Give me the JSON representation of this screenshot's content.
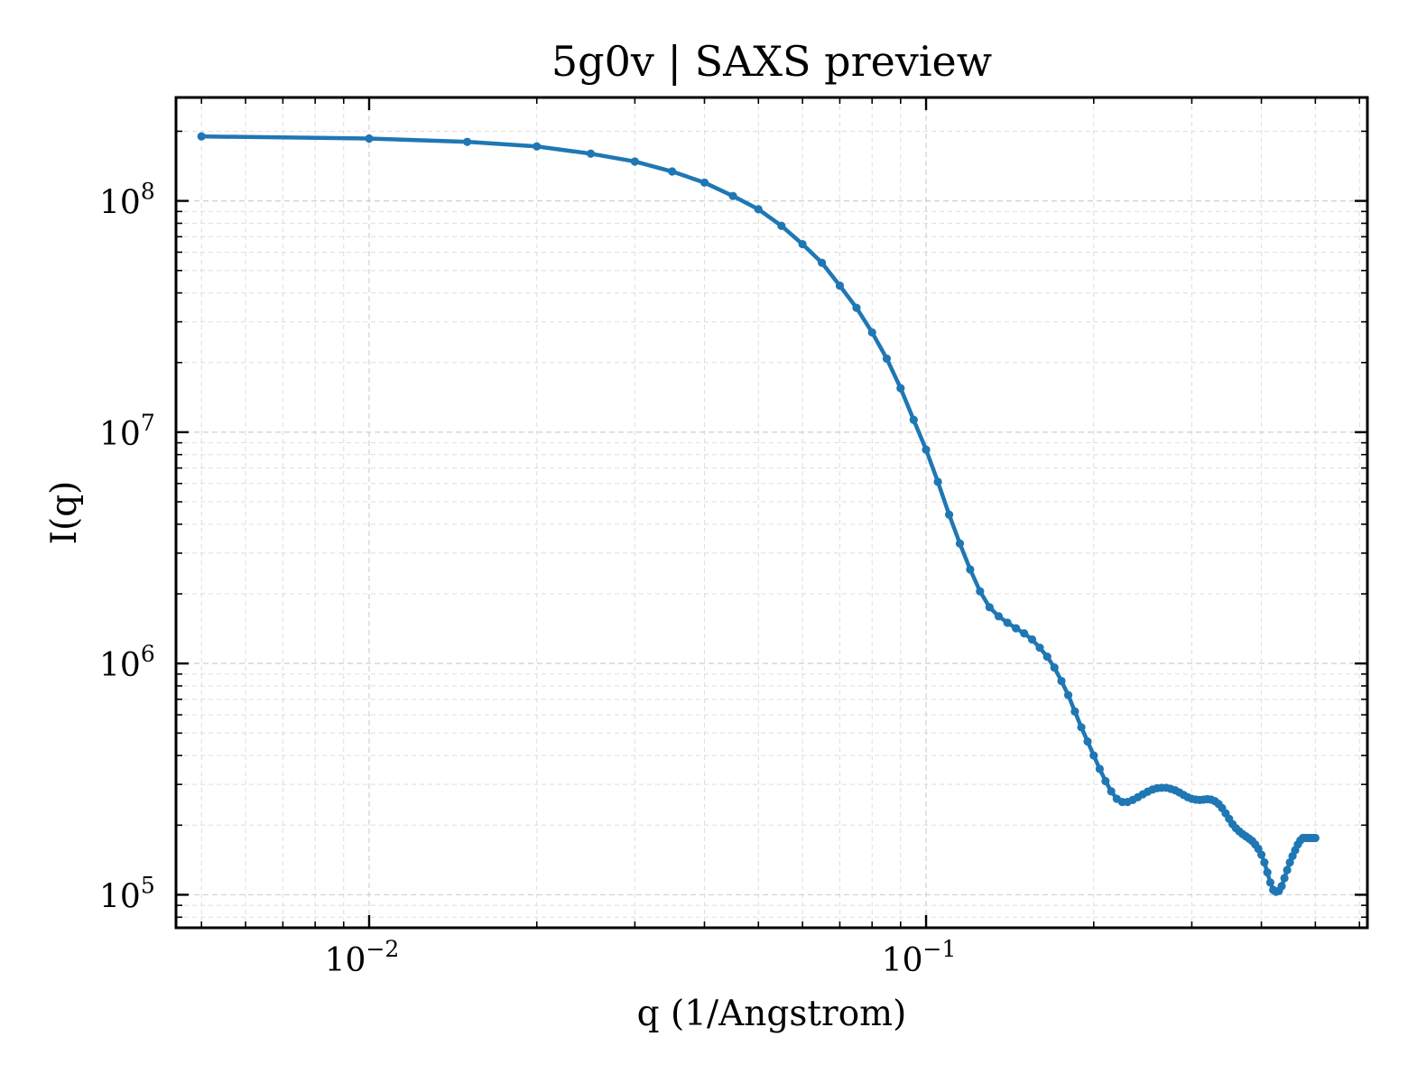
{
  "chart_data": {
    "type": "line",
    "title": "5g0v | SAXS preview",
    "xlabel": "q (1/Angstrom)",
    "ylabel": "I(q)",
    "xscale": "log",
    "yscale": "log",
    "xlim": [
      0.0045,
      0.62
    ],
    "ylim": [
      72000,
      280000000
    ],
    "grid": true,
    "legend": "none",
    "line_color": "#1f77b4",
    "x_ticks": [
      {
        "value": 0.01,
        "base": "10",
        "exp": "−2"
      },
      {
        "value": 0.1,
        "base": "10",
        "exp": "−1"
      }
    ],
    "y_ticks": [
      {
        "value": 100000,
        "base": "10",
        "exp": "5"
      },
      {
        "value": 1000000,
        "base": "10",
        "exp": "6"
      },
      {
        "value": 10000000,
        "base": "10",
        "exp": "7"
      },
      {
        "value": 100000000,
        "base": "10",
        "exp": "8"
      }
    ],
    "series": [
      {
        "x": [
          0.005,
          0.01,
          0.015,
          0.02,
          0.025,
          0.03,
          0.035,
          0.04,
          0.045,
          0.05,
          0.055,
          0.06,
          0.065,
          0.07,
          0.075,
          0.08,
          0.085,
          0.09,
          0.095,
          0.1,
          0.105,
          0.11,
          0.115,
          0.12,
          0.125,
          0.13,
          0.135,
          0.14,
          0.145,
          0.15,
          0.155,
          0.16,
          0.165,
          0.17,
          0.175,
          0.18,
          0.185,
          0.19,
          0.195,
          0.2,
          0.205,
          0.21,
          0.215,
          0.22,
          0.225,
          0.23,
          0.235,
          0.24,
          0.245,
          0.25,
          0.255,
          0.26,
          0.265,
          0.27,
          0.275,
          0.28,
          0.285,
          0.29,
          0.295,
          0.3,
          0.305,
          0.31,
          0.315,
          0.32,
          0.325,
          0.33,
          0.335,
          0.34,
          0.345,
          0.35,
          0.355,
          0.36,
          0.365,
          0.37,
          0.375,
          0.38,
          0.385,
          0.39,
          0.395,
          0.4,
          0.405,
          0.41,
          0.415,
          0.42,
          0.425,
          0.43,
          0.435,
          0.44,
          0.445,
          0.45,
          0.455,
          0.46,
          0.465,
          0.47,
          0.475,
          0.48,
          0.485,
          0.49,
          0.495,
          0.5
        ],
        "y": [
          190000000,
          186000000,
          180000000,
          172000000,
          160000000,
          148000000,
          134000000,
          120000000,
          105000000,
          92000000,
          78000000,
          65000000,
          54000000,
          43000000,
          34500000,
          27000000,
          20800000,
          15500000,
          11300000,
          8400000,
          6100000,
          4400000,
          3300000,
          2550000,
          2050000,
          1750000,
          1600000,
          1500000,
          1420000,
          1350000,
          1270000,
          1170000,
          1070000,
          960000,
          840000,
          730000,
          620000,
          530000,
          460000,
          400000,
          350000,
          310000,
          280000,
          260000,
          252000,
          252000,
          257000,
          264000,
          272000,
          279000,
          285000,
          289000,
          290000,
          290000,
          287000,
          283000,
          277000,
          270000,
          264000,
          260000,
          258000,
          257000,
          258000,
          259000,
          258000,
          254000,
          247000,
          237000,
          225000,
          213000,
          202000,
          194000,
          188000,
          183000,
          179000,
          175000,
          171000,
          165000,
          158000,
          149000,
          138000,
          125000,
          113000,
          105000,
          103000,
          104000,
          109000,
          118000,
          128000,
          138000,
          147000,
          156000,
          165000,
          172000,
          176000,
          176000,
          176000,
          176000,
          176000,
          176000
        ]
      }
    ]
  }
}
